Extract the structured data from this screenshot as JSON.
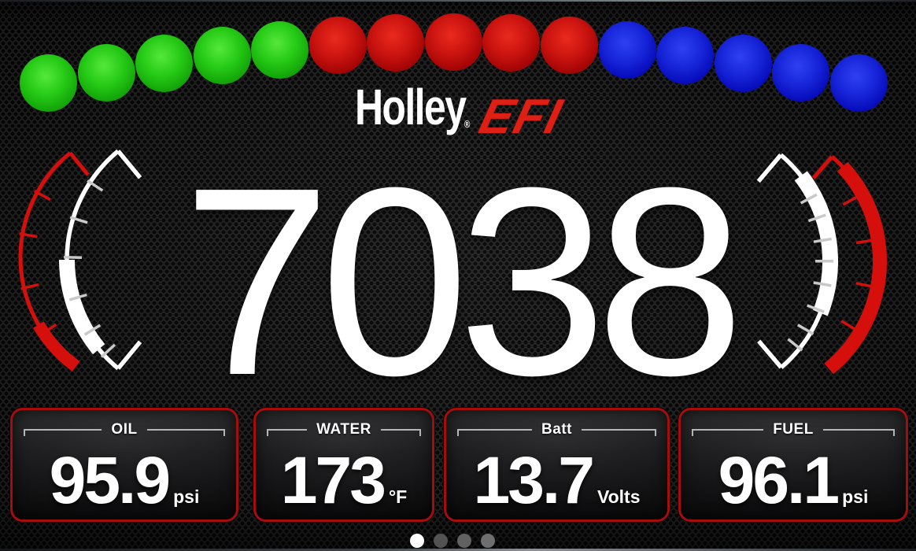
{
  "logo": {
    "brand": "Holley",
    "registered": "®",
    "suffix": "EFI"
  },
  "rpm": {
    "value": "7038"
  },
  "shift_lights": {
    "colors": [
      "green",
      "green",
      "green",
      "green",
      "green",
      "red",
      "red",
      "red",
      "red",
      "red",
      "blue",
      "blue",
      "blue",
      "blue",
      "blue"
    ]
  },
  "gauges": [
    {
      "label": "OIL",
      "value": "95.9",
      "unit": "psi"
    },
    {
      "label": "WATER",
      "value": "173",
      "unit": "°F"
    },
    {
      "label": "Batt",
      "value": "13.7",
      "unit": "Volts"
    },
    {
      "label": "FUEL",
      "value": "96.1",
      "unit": "psi"
    }
  ],
  "pager": {
    "count": 4,
    "active_index": 0
  },
  "colors": {
    "accent_red": "#d40f0c",
    "card_border": "#a50d0d",
    "light_green": "#27cb17",
    "light_red": "#cb1410",
    "light_blue": "#1826da",
    "tick_gray": "#c9c9c9",
    "pager_active": "#ffffff",
    "pager_inactive": [
      "#525252",
      "#616161",
      "#6f6f6f"
    ]
  }
}
